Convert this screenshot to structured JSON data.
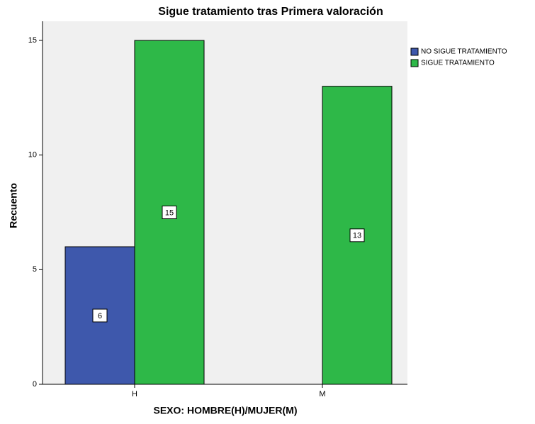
{
  "chart_data": {
    "type": "bar",
    "title": "Sigue tratamiento tras Primera valoración",
    "x_label": "SEXO: HOMBRE(H)/MUJER(M)",
    "y_label": "Recuento",
    "categories": [
      "H",
      "M"
    ],
    "series": [
      {
        "name": "NO SIGUE TRATAMIENTO",
        "color": "#3e58ac",
        "values": [
          6,
          null
        ]
      },
      {
        "name": "SIGUE TRATAMIENTO",
        "color": "#2eb848",
        "values": [
          15,
          13
        ]
      }
    ],
    "ylim": [
      0,
      15
    ],
    "yticks": [
      0,
      5,
      10,
      15
    ],
    "grid": false
  }
}
